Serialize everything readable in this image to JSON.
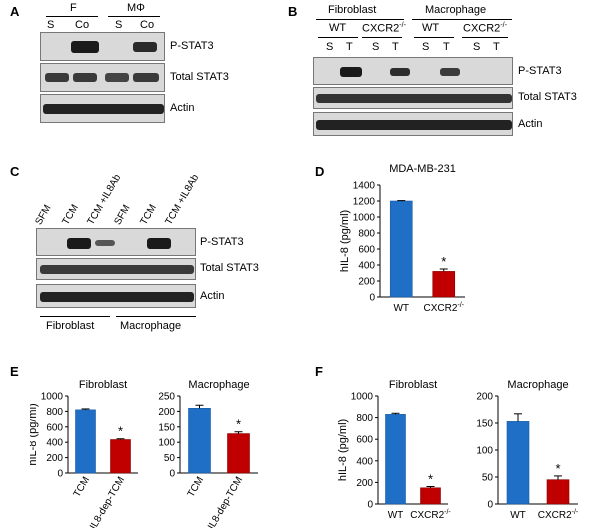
{
  "panels": {
    "A": {
      "letter": "A",
      "groups": [
        "F",
        "MΦ"
      ],
      "lanes": [
        "S",
        "Co",
        "S",
        "Co"
      ],
      "rows": [
        "P-STAT3",
        "Total STAT3",
        "Actin"
      ]
    },
    "B": {
      "letter": "B",
      "groups": [
        "Fibroblast",
        "Macrophage"
      ],
      "subgroups": [
        "WT",
        "CXCR2",
        "WT",
        "CXCR2"
      ],
      "subgroup_sup": "-/-",
      "lanes": [
        "S",
        "T",
        "S",
        "T",
        "S",
        "T",
        "S",
        "T"
      ],
      "rows": [
        "P-STAT3",
        "Total STAT3",
        "Actin"
      ]
    },
    "C": {
      "letter": "C",
      "lanes": [
        "SFM",
        "TCM",
        "TCM +IL8Ab",
        "SFM",
        "TCM",
        "TCM +IL8Ab"
      ],
      "rows": [
        "P-STAT3",
        "Total STAT3",
        "Actin"
      ],
      "groups": [
        "Fibroblast",
        "Macrophage"
      ]
    },
    "D": {
      "letter": "D"
    },
    "E": {
      "letter": "E"
    },
    "F": {
      "letter": "F"
    }
  },
  "colors": {
    "blue": "#1f6fc6",
    "red": "#c00000"
  },
  "chart_data": [
    {
      "id": "D",
      "type": "bar",
      "title": "MDA-MB-231",
      "ylabel": "hIL-8 (pg/ml)",
      "categories": [
        "WT",
        "CXCR2"
      ],
      "category_sup": [
        "",
        "-/-"
      ],
      "values": [
        1200,
        320
      ],
      "errors": [
        5,
        30
      ],
      "significance": [
        "",
        "*"
      ],
      "ylim": [
        0,
        1400
      ],
      "yticks": [
        "0",
        "200",
        "400",
        "600",
        "800",
        "1000",
        "1200",
        "1400"
      ]
    },
    {
      "id": "E1",
      "type": "bar",
      "title": "Fibroblast",
      "ylabel": "hIL-8 (pg/ml)",
      "categories": [
        "TCM",
        "IL8-dep-TCM"
      ],
      "values": [
        820,
        435
      ],
      "errors": [
        12,
        10
      ],
      "significance": [
        "",
        "*"
      ],
      "ylim": [
        0,
        1000
      ],
      "yticks": [
        "0",
        "200",
        "400",
        "600",
        "800",
        "1000"
      ]
    },
    {
      "id": "E2",
      "type": "bar",
      "title": "Macrophage",
      "ylabel": "",
      "categories": [
        "TCM",
        "IL8-dep-TCM"
      ],
      "values": [
        210,
        128
      ],
      "errors": [
        10,
        6
      ],
      "significance": [
        "",
        "*"
      ],
      "ylim": [
        0,
        250
      ],
      "yticks": [
        "0",
        "50",
        "100",
        "150",
        "200",
        "250"
      ]
    },
    {
      "id": "F1",
      "type": "bar",
      "title": "Fibroblast",
      "ylabel": "hIL-8 (pg/ml)",
      "categories": [
        "WT",
        "CXCR2"
      ],
      "category_sup": [
        "",
        "-/-"
      ],
      "values": [
        830,
        150
      ],
      "errors": [
        10,
        12
      ],
      "significance": [
        "",
        "*"
      ],
      "ylim": [
        0,
        1000
      ],
      "yticks": [
        "0",
        "200",
        "400",
        "600",
        "800",
        "1000"
      ]
    },
    {
      "id": "F2",
      "type": "bar",
      "title": "Macrophage",
      "ylabel": "",
      "categories": [
        "WT",
        "CXCR2"
      ],
      "category_sup": [
        "",
        "-/-"
      ],
      "values": [
        153,
        45
      ],
      "errors": [
        14,
        7
      ],
      "significance": [
        "",
        "*"
      ],
      "ylim": [
        0,
        200
      ],
      "yticks": [
        "0",
        "50",
        "100",
        "150",
        "200"
      ]
    }
  ]
}
